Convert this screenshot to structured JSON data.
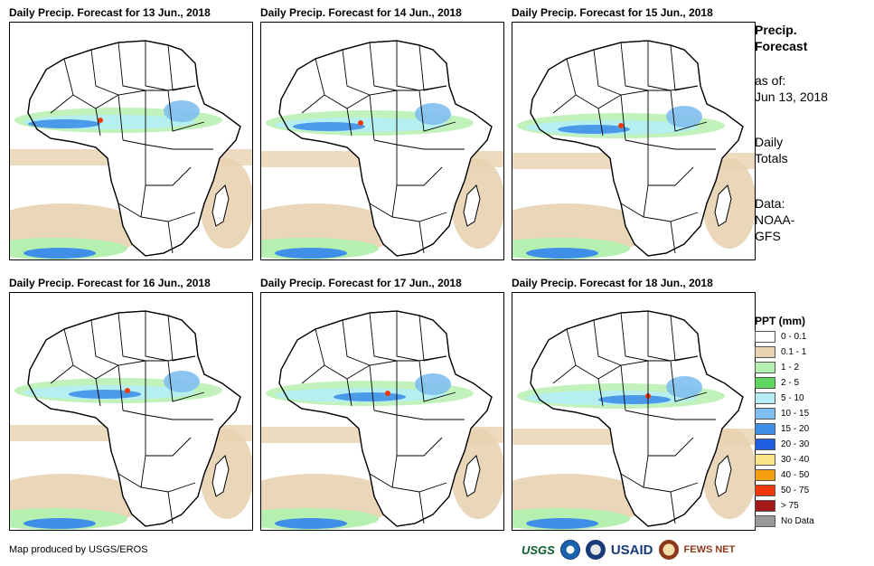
{
  "panels": [
    {
      "title": "Daily Precip. Forecast for 13 Jun., 2018"
    },
    {
      "title": "Daily Precip. Forecast for 14 Jun., 2018"
    },
    {
      "title": "Daily Precip. Forecast for 15 Jun., 2018"
    },
    {
      "title": "Daily Precip. Forecast for 16 Jun., 2018"
    },
    {
      "title": "Daily Precip. Forecast for 17 Jun., 2018"
    },
    {
      "title": "Daily Precip. Forecast for 18 Jun., 2018"
    }
  ],
  "side": {
    "title": "Precip. Forecast",
    "as_of_label": "as of:",
    "as_of_date": "Jun 13, 2018",
    "totals": "Daily Totals",
    "data_source": "Data: NOAA-GFS"
  },
  "legend": {
    "title": "PPT (mm)",
    "items": [
      {
        "label": "0 - 0.1",
        "color": "#ffffff"
      },
      {
        "label": "0.1 - 1",
        "color": "#e8d2b0"
      },
      {
        "label": "1 - 2",
        "color": "#b6f0b0"
      },
      {
        "label": "2 - 5",
        "color": "#5fd65f"
      },
      {
        "label": "5 - 10",
        "color": "#b4eef4"
      },
      {
        "label": "10 - 15",
        "color": "#7fbfef"
      },
      {
        "label": "15 - 20",
        "color": "#3f8fe8"
      },
      {
        "label": "20 - 30",
        "color": "#1f5fe0"
      },
      {
        "label": "30 - 40",
        "color": "#fbe48a"
      },
      {
        "label": "40 - 50",
        "color": "#f5a010"
      },
      {
        "label": "50 - 75",
        "color": "#f03a0a"
      },
      {
        "label": "> 75",
        "color": "#a31818"
      },
      {
        "label": "No Data",
        "color": "#999999"
      }
    ]
  },
  "credit": "Map produced by USGS/EROS",
  "logos": {
    "usgs": "USGS",
    "usaid": "USAID",
    "fews": "FEWS NET"
  }
}
